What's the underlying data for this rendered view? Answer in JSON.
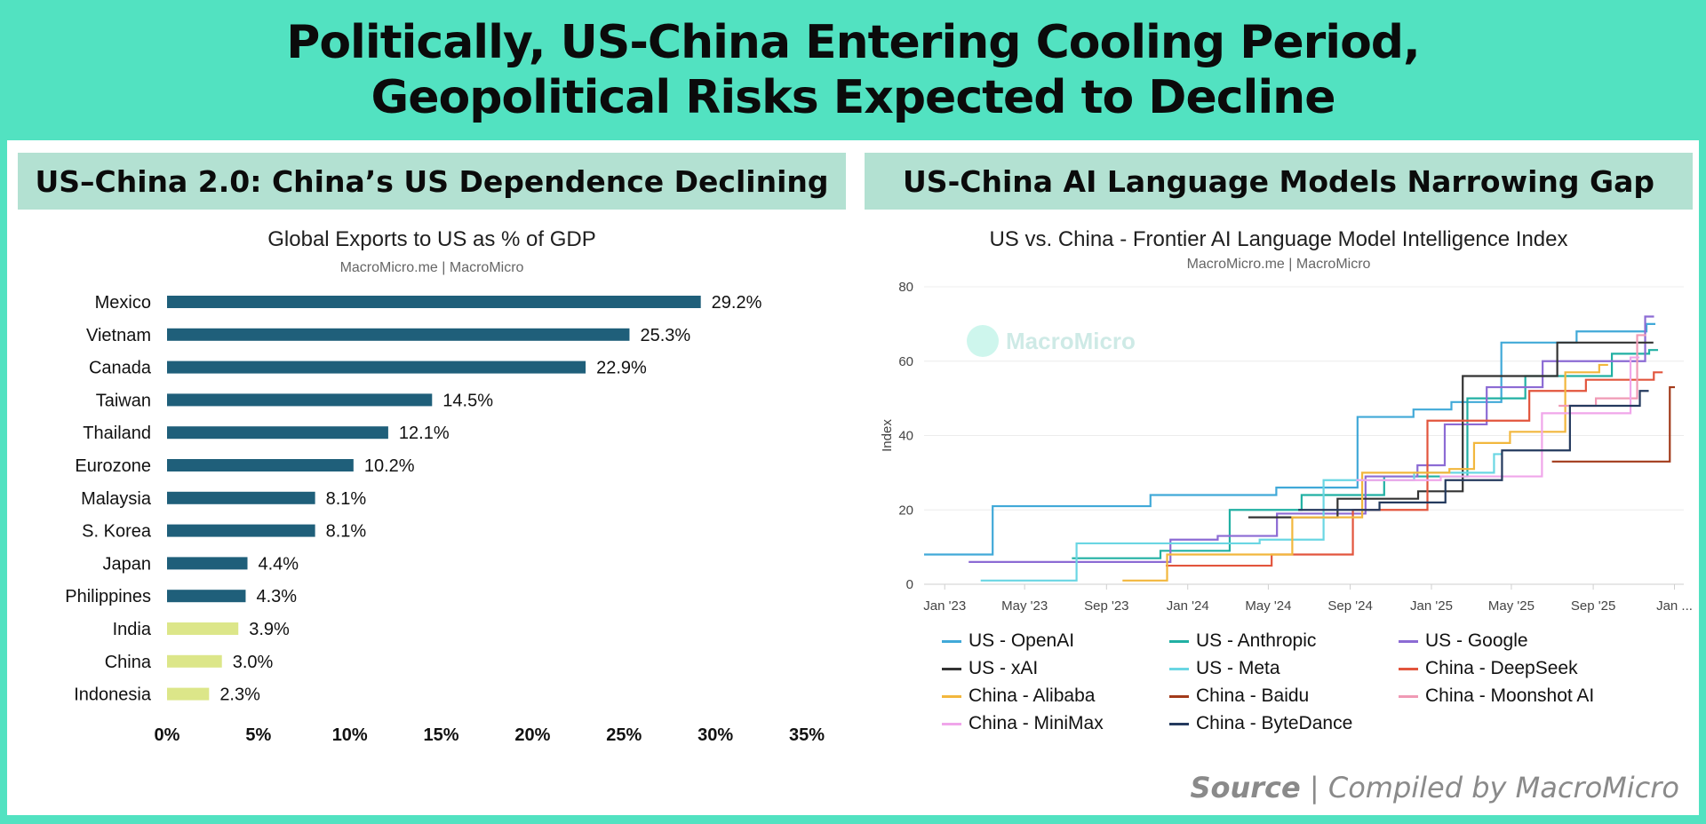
{
  "header": {
    "line1": "Politically, US-China Entering Cooling Period,",
    "line2": "Geopolitical Risks Expected to Decline"
  },
  "left_panel": {
    "subheader": "US–China 2.0: China’s US Dependence Declining",
    "chart_title": "Global Exports to US as % of GDP",
    "credit": "MacroMicro.me | MacroMicro"
  },
  "right_panel": {
    "subheader": "US-China AI Language Models Narrowing Gap",
    "chart_title": "US vs. China - Frontier AI Language Model Intelligence Index",
    "credit": "MacroMicro.me | MacroMicro",
    "watermark": "MacroMicro"
  },
  "source": {
    "label": "Source",
    "separator": "|",
    "text": "Compiled by MacroMicro"
  },
  "colors": {
    "background": "#52e2c1",
    "subheader": "#b3e1d2",
    "bar_other": "#1f5f7a",
    "bar_asia": "#dce689"
  },
  "chart_data": [
    {
      "type": "bar",
      "orientation": "horizontal",
      "title": "Global Exports to US as % of GDP",
      "categories": [
        "Mexico",
        "Vietnam",
        "Canada",
        "Taiwan",
        "Thailand",
        "Eurozone",
        "Malaysia",
        "S. Korea",
        "Japan",
        "Philippines",
        "India",
        "China",
        "Indonesia"
      ],
      "values": [
        29.2,
        25.3,
        22.9,
        14.5,
        12.1,
        10.2,
        8.1,
        8.1,
        4.4,
        4.3,
        3.9,
        3.0,
        2.3
      ],
      "value_labels": [
        "29.2%",
        "25.3%",
        "22.9%",
        "14.5%",
        "12.1%",
        "10.2%",
        "8.1%",
        "8.1%",
        "4.4%",
        "4.3%",
        "3.9%",
        "3.0%",
        "2.3%"
      ],
      "highlight": [
        false,
        false,
        false,
        false,
        false,
        false,
        false,
        false,
        false,
        false,
        true,
        true,
        true
      ],
      "xlim": [
        0,
        35
      ],
      "xticks": [
        "0%",
        "5%",
        "10%",
        "15%",
        "20%",
        "25%",
        "30%",
        "35%"
      ]
    },
    {
      "type": "line",
      "step": true,
      "title": "US vs. China - Frontier AI Language Model Intelligence Index",
      "ylabel": "Index",
      "ylim": [
        0,
        80
      ],
      "yticks": [
        "0",
        "20",
        "40",
        "60",
        "80"
      ],
      "xticks": [
        "Jan '23",
        "May '23",
        "Sep '23",
        "Jan '24",
        "May '24",
        "Sep '24",
        "Jan '25",
        "May '25",
        "Sep '25",
        "Jan ..."
      ],
      "xlim": [
        "2022-12-01",
        "2026-01-15"
      ],
      "series": [
        {
          "name": "US - OpenAI",
          "color": "#41a9d8",
          "points": [
            [
              "2022-12-01",
              8
            ],
            [
              "2023-03-14",
              21
            ],
            [
              "2023-11-06",
              24
            ],
            [
              "2024-05-13",
              26
            ],
            [
              "2024-09-12",
              45
            ],
            [
              "2024-12-05",
              47
            ],
            [
              "2025-01-31",
              49
            ],
            [
              "2025-04-16",
              65
            ],
            [
              "2025-08-07",
              68
            ],
            [
              "2025-11-20",
              70
            ]
          ]
        },
        {
          "name": "US - Anthropic",
          "color": "#21b0a3",
          "points": [
            [
              "2023-07-11",
              7
            ],
            [
              "2023-11-21",
              9
            ],
            [
              "2024-03-04",
              20
            ],
            [
              "2024-06-20",
              24
            ],
            [
              "2024-10-22",
              29
            ],
            [
              "2025-02-24",
              50
            ],
            [
              "2025-05-22",
              56
            ],
            [
              "2025-09-29",
              62
            ],
            [
              "2025-11-24",
              63
            ]
          ]
        },
        {
          "name": "US - Google",
          "color": "#8c6bd4",
          "points": [
            [
              "2023-02-06",
              6
            ],
            [
              "2023-12-06",
              12
            ],
            [
              "2024-02-15",
              13
            ],
            [
              "2024-05-14",
              19
            ],
            [
              "2024-09-24",
              29
            ],
            [
              "2024-12-11",
              32
            ],
            [
              "2025-01-21",
              43
            ],
            [
              "2025-03-25",
              53
            ],
            [
              "2025-06-17",
              60
            ],
            [
              "2025-11-18",
              72
            ]
          ]
        },
        {
          "name": "US - xAI",
          "color": "#333333",
          "points": [
            [
              "2024-04-01",
              18
            ],
            [
              "2024-08-13",
              23
            ],
            [
              "2024-12-12",
              25
            ],
            [
              "2025-02-17",
              56
            ],
            [
              "2025-07-09",
              65
            ],
            [
              "2025-11-17",
              65
            ]
          ]
        },
        {
          "name": "US - Meta",
          "color": "#6ad6e3",
          "points": [
            [
              "2023-02-24",
              1
            ],
            [
              "2023-07-18",
              11
            ],
            [
              "2024-04-18",
              12
            ],
            [
              "2024-07-23",
              28
            ],
            [
              "2024-12-06",
              30
            ],
            [
              "2025-04-05",
              35
            ]
          ]
        },
        {
          "name": "China - DeepSeek",
          "color": "#e2553d",
          "points": [
            [
              "2023-11-29",
              5
            ],
            [
              "2024-05-06",
              8
            ],
            [
              "2024-09-05",
              20
            ],
            [
              "2024-12-26",
              44
            ],
            [
              "2025-05-28",
              52
            ],
            [
              "2025-08-21",
              55
            ],
            [
              "2025-12-01",
              57
            ]
          ]
        },
        {
          "name": "China - Alibaba",
          "color": "#f2b73d",
          "points": [
            [
              "2023-09-25",
              1
            ],
            [
              "2023-12-01",
              8
            ],
            [
              "2024-06-06",
              18
            ],
            [
              "2024-09-19",
              30
            ],
            [
              "2025-01-28",
              31
            ],
            [
              "2025-03-06",
              38
            ],
            [
              "2025-04-29",
              41
            ],
            [
              "2025-07-21",
              57
            ],
            [
              "2025-09-10",
              59
            ]
          ]
        },
        {
          "name": "China - Baidu",
          "color": "#a23a1a",
          "points": [
            [
              "2025-07-01",
              33
            ],
            [
              "2025-12-20",
              33
            ],
            [
              "2025-12-25",
              53
            ]
          ]
        },
        {
          "name": "China - Moonshot AI",
          "color": "#f09ab5",
          "points": [
            [
              "2025-07-11",
              48
            ],
            [
              "2025-09-05",
              50
            ],
            [
              "2025-11-06",
              67
            ]
          ]
        },
        {
          "name": "China - MiniMax",
          "color": "#f0a6ea",
          "points": [
            [
              "2024-09-10",
              28
            ],
            [
              "2025-01-15",
              29
            ],
            [
              "2025-06-16",
              46
            ],
            [
              "2025-10-27",
              61
            ]
          ]
        },
        {
          "name": "China - ByteDance",
          "color": "#243a5e",
          "points": [
            [
              "2024-06-15",
              20
            ],
            [
              "2024-10-15",
              22
            ],
            [
              "2025-01-22",
              28
            ],
            [
              "2025-04-17",
              36
            ],
            [
              "2025-07-28",
              48
            ],
            [
              "2025-11-10",
              52
            ]
          ]
        }
      ]
    }
  ]
}
